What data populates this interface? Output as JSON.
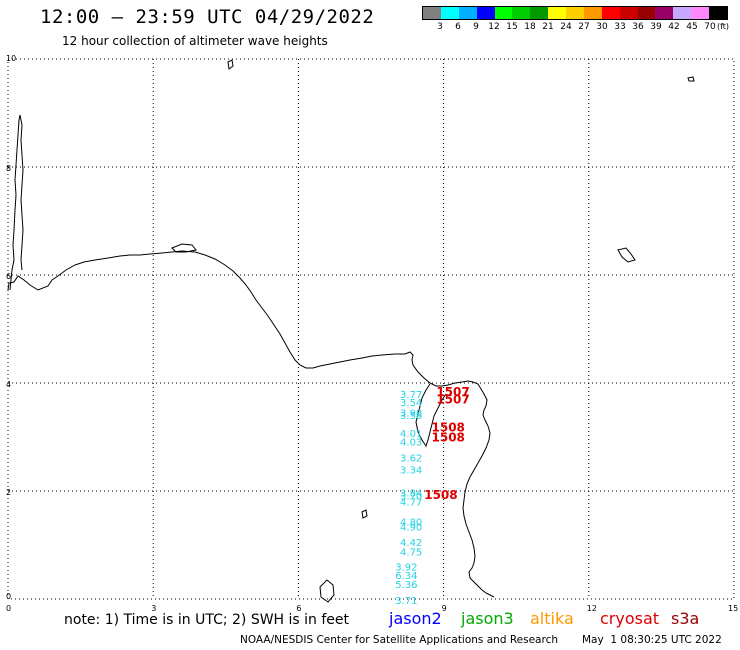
{
  "header": {
    "title": "12:00 – 23:59 UTC 04/29/2022",
    "subtitle": "12 hour collection of altimeter wave heights"
  },
  "color_scale": {
    "labels": [
      "3",
      "6",
      "9",
      "12",
      "15",
      "18",
      "21",
      "24",
      "27",
      "30",
      "33",
      "36",
      "39",
      "42",
      "45",
      "70"
    ],
    "unit": "(ft)",
    "colors": [
      "#808080",
      "#00ffff",
      "#00b0ff",
      "#0000ff",
      "#00ff00",
      "#00cc00",
      "#009900",
      "#ffff00",
      "#ffd000",
      "#ff9900",
      "#ff0000",
      "#cc0000",
      "#990000",
      "#990066",
      "#c8a8ff",
      "#ff88ff",
      "#000000"
    ]
  },
  "map": {
    "y_axis_labels": [
      "10",
      "8",
      "6",
      "4",
      "2",
      "0"
    ],
    "x_axis_labels": [
      "0",
      "3",
      "6",
      "9",
      "12",
      "15"
    ]
  },
  "observations": {
    "cyan": [
      {
        "text": "3.77",
        "lon": 8.1,
        "lat": 3.72
      },
      {
        "text": "3.54",
        "lon": 8.1,
        "lat": 3.57
      },
      {
        "text": "3.98",
        "lon": 8.1,
        "lat": 3.38
      },
      {
        "text": "3.58",
        "lon": 8.1,
        "lat": 3.33
      },
      {
        "text": "4.01",
        "lon": 8.1,
        "lat": 3.0
      },
      {
        "text": "4.03",
        "lon": 8.1,
        "lat": 2.84
      },
      {
        "text": "3.62",
        "lon": 8.1,
        "lat": 2.55
      },
      {
        "text": "3.34",
        "lon": 8.1,
        "lat": 2.32
      },
      {
        "text": "3.84",
        "lon": 8.1,
        "lat": 1.9
      },
      {
        "text": "3.70",
        "lon": 8.1,
        "lat": 1.84
      },
      {
        "text": "4.77",
        "lon": 8.1,
        "lat": 1.73
      },
      {
        "text": "4.80",
        "lon": 8.1,
        "lat": 1.36
      },
      {
        "text": "4.90",
        "lon": 8.1,
        "lat": 1.27
      },
      {
        "text": "4.42",
        "lon": 8.1,
        "lat": 0.98
      },
      {
        "text": "4.75",
        "lon": 8.1,
        "lat": 0.81
      },
      {
        "text": "3.92",
        "lon": 8.0,
        "lat": 0.53
      },
      {
        "text": "6.34",
        "lon": 8.0,
        "lat": 0.37
      },
      {
        "text": "5.36",
        "lon": 8.0,
        "lat": 0.2
      },
      {
        "text": "3.71",
        "lon": 8.0,
        "lat": -0.09
      }
    ],
    "red": [
      {
        "text": "1507",
        "lon": 8.85,
        "lat": 3.76
      },
      {
        "text": "1507",
        "lon": 8.85,
        "lat": 3.62
      },
      {
        "text": "1508",
        "lon": 8.75,
        "lat": 3.1
      },
      {
        "text": "1508",
        "lon": 8.75,
        "lat": 2.92
      },
      {
        "text": "1508",
        "lon": 8.6,
        "lat": 1.85
      }
    ]
  },
  "footer": {
    "note": "note: 1) Time is in UTC; 2) SWH is in feet",
    "satellites": [
      {
        "name": "jason2",
        "color": "#0000ff"
      },
      {
        "name": "jason3",
        "color": "#00aa00"
      },
      {
        "name": "altika",
        "color": "#ff9900"
      },
      {
        "name": "cryosat",
        "color": "#dd0000"
      },
      {
        "name": "s3a",
        "color": "#990000"
      }
    ],
    "credit": "NOAA/NESDIS Center for Satellite Applications and Research",
    "timestamp": "May  1 08:30:25 UTC 2022"
  }
}
